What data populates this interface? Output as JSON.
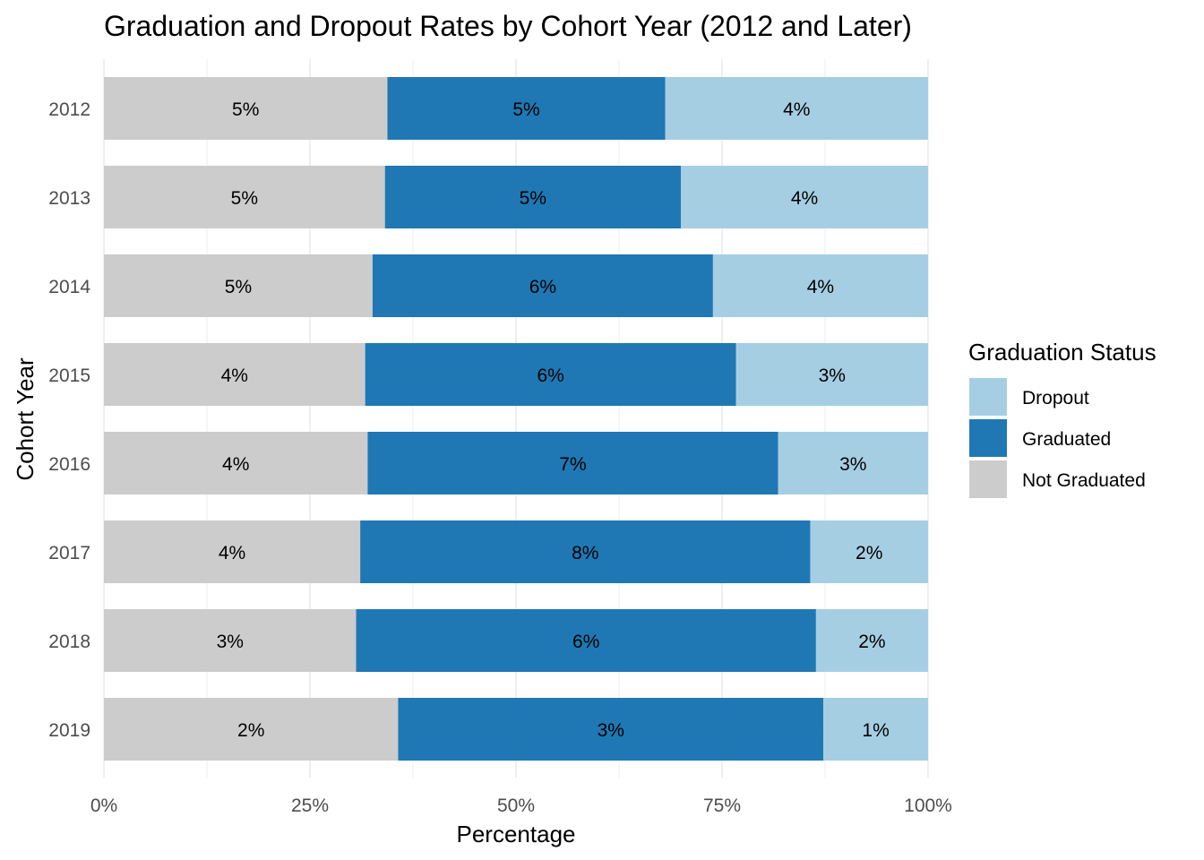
{
  "chart_data": {
    "type": "bar",
    "orientation": "horizontal",
    "stacked": "percent",
    "title": "Graduation and Dropout Rates by Cohort Year (2012 and Later)",
    "xlabel": "Percentage",
    "ylabel": "Cohort Year",
    "xlim": [
      0,
      100
    ],
    "x_ticks": [
      "0%",
      "25%",
      "50%",
      "75%",
      "100%"
    ],
    "grid": true,
    "categories": [
      "2012",
      "2013",
      "2014",
      "2015",
      "2016",
      "2017",
      "2018",
      "2019"
    ],
    "series": [
      {
        "name": "Not Graduated",
        "color": "#cccccc",
        "share_pct": [
          34.4,
          34.1,
          32.6,
          31.7,
          32.0,
          31.1,
          30.6,
          35.7
        ],
        "labels": [
          "5%",
          "5%",
          "5%",
          "4%",
          "4%",
          "4%",
          "3%",
          "2%"
        ]
      },
      {
        "name": "Graduated",
        "color": "#1f78b4",
        "share_pct": [
          33.7,
          35.9,
          41.3,
          45.0,
          49.8,
          54.6,
          55.8,
          51.6
        ],
        "labels": [
          "5%",
          "5%",
          "6%",
          "6%",
          "7%",
          "8%",
          "6%",
          "3%"
        ]
      },
      {
        "name": "Dropout",
        "color": "#a6cee3",
        "share_pct": [
          31.9,
          30.0,
          26.1,
          23.3,
          18.2,
          14.3,
          13.6,
          12.7
        ],
        "labels": [
          "4%",
          "4%",
          "4%",
          "3%",
          "3%",
          "2%",
          "2%",
          "1%"
        ]
      }
    ],
    "legend": {
      "title": "Graduation Status",
      "position": "right",
      "items": [
        "Dropout",
        "Graduated",
        "Not Graduated"
      ]
    }
  }
}
